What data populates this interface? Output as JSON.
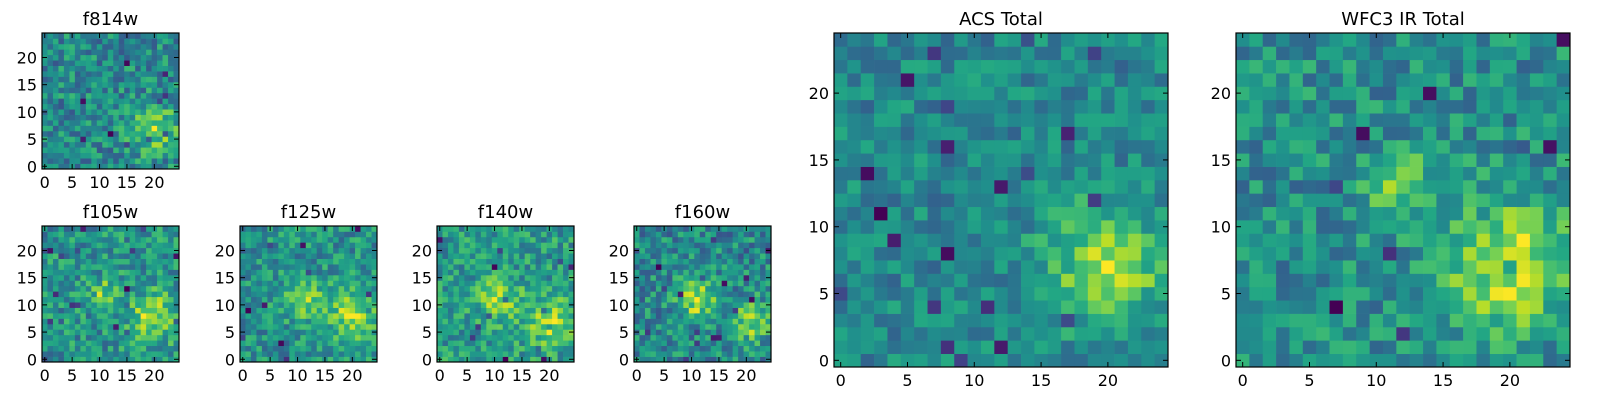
{
  "chart_data": [
    {
      "type": "heatmap",
      "title": "f814w",
      "x_ticks": [
        "0",
        "5",
        "10",
        "15",
        "20"
      ],
      "y_ticks": [
        "0",
        "5",
        "10",
        "15",
        "20"
      ],
      "xlim": [
        -0.5,
        24.5
      ],
      "ylim": [
        -0.5,
        24.5
      ],
      "grid": false,
      "colormap": "viridis",
      "values": [],
      "note_values": "25x25 pixel image, noisy background with a bright source near (20, 7)"
    },
    {
      "type": "heatmap",
      "title": "f105w",
      "x_ticks": [
        "0",
        "5",
        "10",
        "15",
        "20"
      ],
      "y_ticks": [
        "0",
        "5",
        "10",
        "15",
        "20"
      ],
      "xlim": [
        -0.5,
        24.5
      ],
      "ylim": [
        -0.5,
        24.5
      ],
      "grid": false,
      "colormap": "viridis",
      "values": []
    },
    {
      "type": "heatmap",
      "title": "f125w",
      "x_ticks": [
        "0",
        "5",
        "10",
        "15",
        "20"
      ],
      "y_ticks": [
        "0",
        "5",
        "10",
        "15",
        "20"
      ],
      "xlim": [
        -0.5,
        24.5
      ],
      "ylim": [
        -0.5,
        24.5
      ],
      "grid": false,
      "colormap": "viridis",
      "values": []
    },
    {
      "type": "heatmap",
      "title": "f140w",
      "x_ticks": [
        "0",
        "5",
        "10",
        "15",
        "20"
      ],
      "y_ticks": [
        "0",
        "5",
        "10",
        "15",
        "20"
      ],
      "xlim": [
        -0.5,
        24.5
      ],
      "ylim": [
        -0.5,
        24.5
      ],
      "grid": false,
      "colormap": "viridis",
      "values": []
    },
    {
      "type": "heatmap",
      "title": "f160w",
      "x_ticks": [
        "0",
        "5",
        "10",
        "15",
        "20"
      ],
      "y_ticks": [
        "0",
        "5",
        "10",
        "15",
        "20"
      ],
      "xlim": [
        -0.5,
        24.5
      ],
      "ylim": [
        -0.5,
        24.5
      ],
      "grid": false,
      "colormap": "viridis",
      "values": []
    },
    {
      "type": "heatmap",
      "title": "ACS Total",
      "x_ticks": [
        "0",
        "5",
        "10",
        "15",
        "20"
      ],
      "y_ticks": [
        "0",
        "5",
        "10",
        "15",
        "20"
      ],
      "xlim": [
        -0.5,
        24.5
      ],
      "ylim": [
        -0.5,
        24.5
      ],
      "grid": false,
      "colormap": "viridis",
      "values": []
    },
    {
      "type": "heatmap",
      "title": "WFC3 IR Total",
      "x_ticks": [
        "0",
        "5",
        "10",
        "15",
        "20"
      ],
      "y_ticks": [
        "0",
        "5",
        "10",
        "15",
        "20"
      ],
      "xlim": [
        -0.5,
        24.5
      ],
      "ylim": [
        -0.5,
        24.5
      ],
      "grid": false,
      "colormap": "viridis",
      "values": []
    }
  ]
}
